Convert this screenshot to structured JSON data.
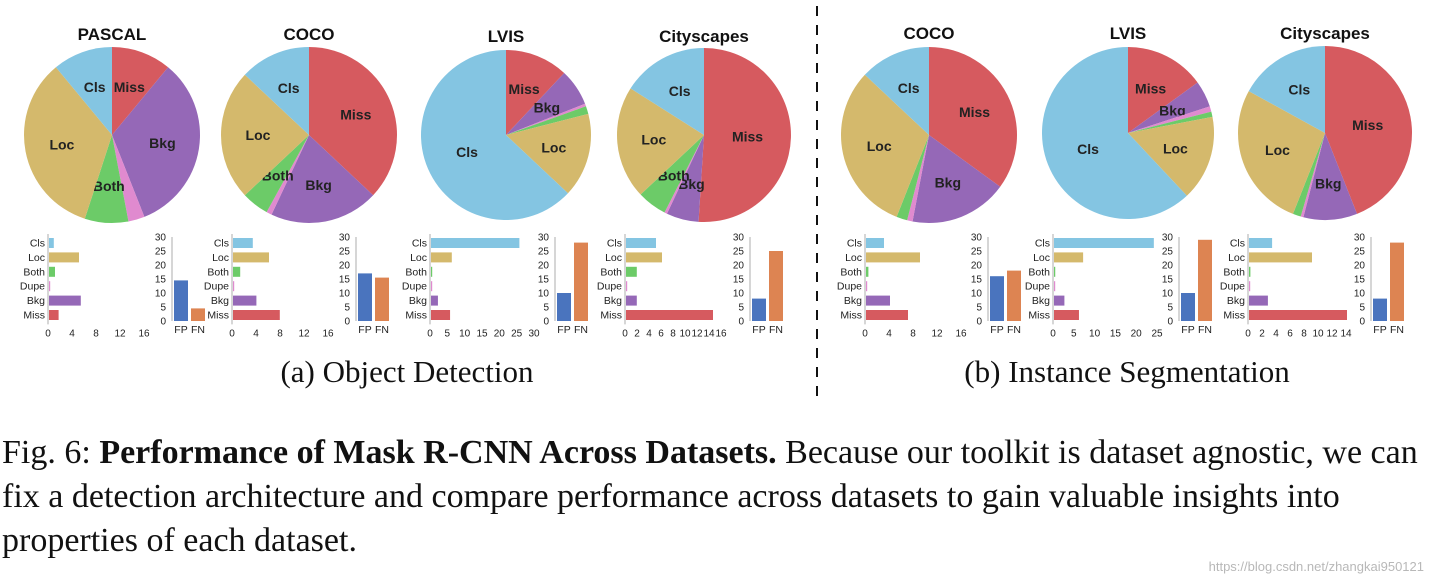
{
  "colors": {
    "Cls": "#84C5E2",
    "Loc": "#D4B96C",
    "Both": "#6CCB68",
    "Dupe": "#E08ACF",
    "Bkg": "#9568B7",
    "Miss": "#D65A5F",
    "FP": "#4A74BE",
    "FN": "#DD8452"
  },
  "chart_data": [
    {
      "type": "pie",
      "group": "a",
      "title": "PASCAL",
      "slices": [
        {
          "label": "Miss",
          "value": 11
        },
        {
          "label": "Bkg",
          "value": 33
        },
        {
          "label": "Dupe",
          "value": 3
        },
        {
          "label": "Both",
          "value": 8
        },
        {
          "label": "Loc",
          "value": 34
        },
        {
          "label": "Cls",
          "value": 11
        }
      ],
      "bars": {
        "categories": [
          "Cls",
          "Loc",
          "Both",
          "Dupe",
          "Bkg",
          "Miss"
        ],
        "values": [
          0.8,
          5.0,
          1.0,
          0.2,
          5.3,
          1.6
        ],
        "xlim": [
          0,
          16
        ],
        "ticks": [
          0,
          4,
          8,
          12,
          16
        ]
      },
      "fpfn": {
        "categories": [
          "FP",
          "FN"
        ],
        "values": [
          14.5,
          4.5
        ],
        "ylim": [
          0,
          30
        ],
        "ticks": [
          0,
          5,
          10,
          15,
          20,
          25,
          30
        ]
      }
    },
    {
      "type": "pie",
      "group": "a",
      "title": "COCO",
      "slices": [
        {
          "label": "Miss",
          "value": 37
        },
        {
          "label": "Bkg",
          "value": 20
        },
        {
          "label": "Dupe",
          "value": 1
        },
        {
          "label": "Both",
          "value": 5
        },
        {
          "label": "Loc",
          "value": 24
        },
        {
          "label": "Cls",
          "value": 13
        }
      ],
      "bars": {
        "categories": [
          "Cls",
          "Loc",
          "Both",
          "Dupe",
          "Bkg",
          "Miss"
        ],
        "values": [
          3.3,
          6.0,
          1.2,
          0.1,
          3.9,
          7.8
        ],
        "xlim": [
          0,
          16
        ],
        "ticks": [
          0,
          4,
          8,
          12,
          16
        ]
      },
      "fpfn": {
        "categories": [
          "FP",
          "FN"
        ],
        "values": [
          17,
          15.5
        ],
        "ylim": [
          0,
          30
        ],
        "ticks": [
          0,
          5,
          10,
          15,
          20,
          25,
          30
        ]
      }
    },
    {
      "type": "pie",
      "group": "a",
      "title": "LVIS",
      "slices": [
        {
          "label": "Miss",
          "value": 12
        },
        {
          "label": "Bkg",
          "value": 7
        },
        {
          "label": "Dupe",
          "value": 0.5
        },
        {
          "label": "Both",
          "value": 1.5
        },
        {
          "label": "Loc",
          "value": 16
        },
        {
          "label": "Cls",
          "value": 63
        }
      ],
      "bars": {
        "categories": [
          "Cls",
          "Loc",
          "Both",
          "Dupe",
          "Bkg",
          "Miss"
        ],
        "values": [
          25.5,
          6.0,
          0.3,
          0.1,
          2.0,
          5.5
        ],
        "xlim": [
          0,
          30
        ],
        "ticks": [
          0,
          5,
          10,
          15,
          20,
          25,
          30
        ]
      },
      "fpfn": {
        "categories": [
          "FP",
          "FN"
        ],
        "values": [
          10,
          28
        ],
        "ylim": [
          0,
          30
        ],
        "ticks": [
          0,
          5,
          10,
          15,
          20,
          25,
          30
        ]
      }
    },
    {
      "type": "pie",
      "group": "a",
      "title": "Cityscapes",
      "slices": [
        {
          "label": "Miss",
          "value": 51
        },
        {
          "label": "Bkg",
          "value": 6
        },
        {
          "label": "Dupe",
          "value": 0.5
        },
        {
          "label": "Both",
          "value": 5.5
        },
        {
          "label": "Loc",
          "value": 21
        },
        {
          "label": "Cls",
          "value": 16
        }
      ],
      "bars": {
        "categories": [
          "Cls",
          "Loc",
          "Both",
          "Dupe",
          "Bkg",
          "Miss"
        ],
        "values": [
          5.0,
          6.0,
          1.8,
          0.1,
          1.8,
          14.5
        ],
        "xlim": [
          0,
          16
        ],
        "ticks": [
          0,
          2,
          4,
          6,
          8,
          10,
          12,
          14,
          16
        ]
      },
      "fpfn": {
        "categories": [
          "FP",
          "FN"
        ],
        "values": [
          8,
          25
        ],
        "ylim": [
          0,
          30
        ],
        "ticks": [
          0,
          5,
          10,
          15,
          20,
          25,
          30
        ]
      }
    },
    {
      "type": "pie",
      "group": "b",
      "title": "COCO",
      "slices": [
        {
          "label": "Miss",
          "value": 35
        },
        {
          "label": "Bkg",
          "value": 18
        },
        {
          "label": "Dupe",
          "value": 1
        },
        {
          "label": "Both",
          "value": 2
        },
        {
          "label": "Loc",
          "value": 31
        },
        {
          "label": "Cls",
          "value": 13
        }
      ],
      "bars": {
        "categories": [
          "Cls",
          "Loc",
          "Both",
          "Dupe",
          "Bkg",
          "Miss"
        ],
        "values": [
          3.0,
          9.0,
          0.4,
          0.1,
          4.0,
          7.0
        ],
        "xlim": [
          0,
          16
        ],
        "ticks": [
          0,
          4,
          8,
          12,
          16
        ]
      },
      "fpfn": {
        "categories": [
          "FP",
          "FN"
        ],
        "values": [
          16,
          18
        ],
        "ylim": [
          0,
          30
        ],
        "ticks": [
          0,
          5,
          10,
          15,
          20,
          25,
          30
        ]
      }
    },
    {
      "type": "pie",
      "group": "b",
      "title": "LVIS",
      "slices": [
        {
          "label": "Miss",
          "value": 15
        },
        {
          "label": "Bkg",
          "value": 5
        },
        {
          "label": "Dupe",
          "value": 1
        },
        {
          "label": "Both",
          "value": 1
        },
        {
          "label": "Loc",
          "value": 16
        },
        {
          "label": "Cls",
          "value": 62
        }
      ],
      "bars": {
        "categories": [
          "Cls",
          "Loc",
          "Both",
          "Dupe",
          "Bkg",
          "Miss"
        ],
        "values": [
          24.0,
          7.0,
          0.3,
          0.1,
          2.5,
          6.0
        ],
        "xlim": [
          0,
          25
        ],
        "ticks": [
          0,
          5,
          10,
          15,
          20,
          25
        ]
      },
      "fpfn": {
        "categories": [
          "FP",
          "FN"
        ],
        "values": [
          10,
          29
        ],
        "ylim": [
          0,
          30
        ],
        "ticks": [
          0,
          5,
          10,
          15,
          20,
          25,
          30
        ]
      }
    },
    {
      "type": "pie",
      "group": "b",
      "title": "Cityscapes",
      "slices": [
        {
          "label": "Miss",
          "value": 44
        },
        {
          "label": "Bkg",
          "value": 10
        },
        {
          "label": "Dupe",
          "value": 0.5
        },
        {
          "label": "Both",
          "value": 1.5
        },
        {
          "label": "Loc",
          "value": 27
        },
        {
          "label": "Cls",
          "value": 17
        }
      ],
      "bars": {
        "categories": [
          "Cls",
          "Loc",
          "Both",
          "Dupe",
          "Bkg",
          "Miss"
        ],
        "values": [
          3.3,
          9.0,
          0.2,
          0.1,
          2.7,
          14.0
        ],
        "xlim": [
          0,
          14
        ],
        "ticks": [
          0,
          2,
          4,
          6,
          8,
          10,
          12,
          14
        ]
      },
      "fpfn": {
        "categories": [
          "FP",
          "FN"
        ],
        "values": [
          8,
          28
        ],
        "ylim": [
          0,
          30
        ],
        "ticks": [
          0,
          5,
          10,
          15,
          20,
          25,
          30
        ]
      }
    }
  ],
  "subcaptions": {
    "a": "(a) Object Detection",
    "b": "(b) Instance Segmentation"
  },
  "caption": {
    "prefix": "Fig. 6: ",
    "bold": "Performance of Mask R-CNN Across Datasets.",
    "text": " Because our toolkit is dataset agnostic, we can fix a detection architecture and compare performance across datasets to gain valuable insights into properties of each dataset."
  },
  "watermark": "https://blog.csdn.net/zhangkai950121"
}
